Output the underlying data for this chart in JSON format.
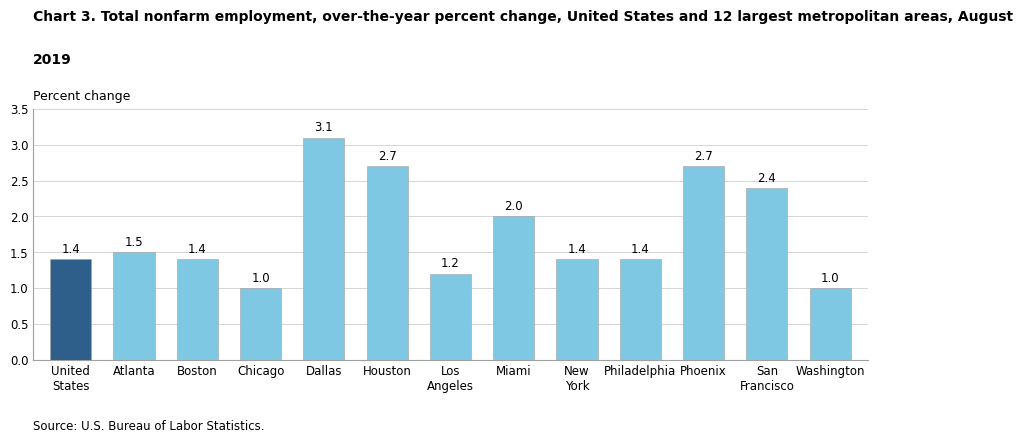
{
  "title_line1": "Chart 3. Total nonfarm employment, over-the-year percent change, United States and 12 largest metropolitan areas, August",
  "title_line2": "2019",
  "ylabel_text": "Percent change",
  "source": "Source: U.S. Bureau of Labor Statistics.",
  "categories": [
    "United\nStates",
    "Atlanta",
    "Boston",
    "Chicago",
    "Dallas",
    "Houston",
    "Los\nAngeles",
    "Miami",
    "New\nYork",
    "Philadelphia",
    "Phoenix",
    "San\nFrancisco",
    "Washington"
  ],
  "values": [
    1.4,
    1.5,
    1.4,
    1.0,
    3.1,
    2.7,
    1.2,
    2.0,
    1.4,
    1.4,
    2.7,
    2.4,
    1.0
  ],
  "bar_colors": [
    "#2e5f8a",
    "#7ec8e3",
    "#7ec8e3",
    "#7ec8e3",
    "#7ec8e3",
    "#7ec8e3",
    "#7ec8e3",
    "#7ec8e3",
    "#7ec8e3",
    "#7ec8e3",
    "#7ec8e3",
    "#7ec8e3",
    "#7ec8e3"
  ],
  "ylim": [
    0,
    3.5
  ],
  "yticks": [
    0.0,
    0.5,
    1.0,
    1.5,
    2.0,
    2.5,
    3.0,
    3.5
  ],
  "bar_edge_color": "#a0a0a0",
  "bar_edge_width": 0.4,
  "label_fontsize": 8.5,
  "title_fontsize": 10,
  "ylabel_fontsize": 9,
  "source_fontsize": 8.5,
  "tick_fontsize": 8.5,
  "background_color": "#ffffff",
  "grid_color": "#d0d0d0",
  "spine_color": "#a0a0a0"
}
